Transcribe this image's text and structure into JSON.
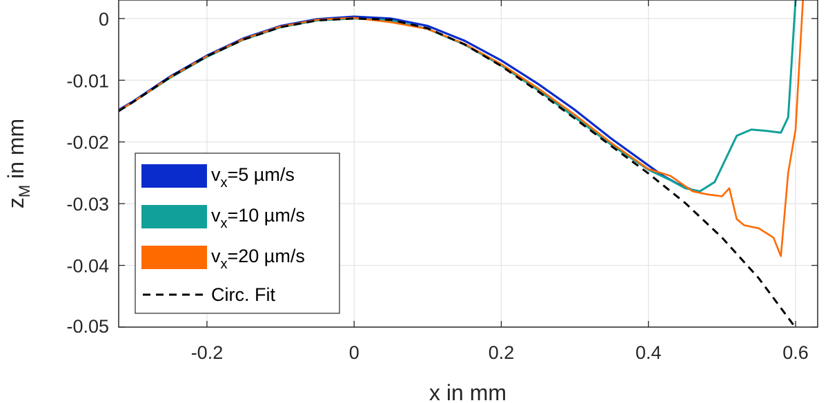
{
  "chart_data": {
    "type": "line",
    "xlabel": "x in mm",
    "ylabel": "z_M in mm",
    "ylabel_main": "z",
    "ylabel_sub": "M",
    "ylabel_rest": " in mm",
    "xlim": [
      -0.32,
      0.63
    ],
    "ylim": [
      -0.05,
      0.003
    ],
    "xticks": [
      -0.2,
      0,
      0.2,
      0.4,
      0.6
    ],
    "xtick_labels": [
      "-0.2",
      "0",
      "0.2",
      "0.4",
      "0.6"
    ],
    "yticks": [
      0,
      -0.01,
      -0.02,
      -0.03,
      -0.04,
      -0.05
    ],
    "ytick_labels": [
      "0",
      "-0.01",
      "-0.02",
      "-0.03",
      "-0.04",
      "-0.05"
    ],
    "grid": true,
    "legend_position": "bottom-left",
    "fit": {
      "name": "Circ. Fit",
      "style": "dashed",
      "color": "#000000",
      "x": [
        -0.32,
        -0.3,
        -0.25,
        -0.2,
        -0.15,
        -0.1,
        -0.05,
        0.0,
        0.05,
        0.1,
        0.15,
        0.2,
        0.25,
        0.3,
        0.35,
        0.4,
        0.45,
        0.5,
        0.55,
        0.6
      ],
      "y": [
        -0.015,
        -0.0135,
        -0.0095,
        -0.0061,
        -0.0034,
        -0.0014,
        -0.0003,
        0.0,
        -0.0002,
        -0.0016,
        -0.0042,
        -0.0077,
        -0.0118,
        -0.0162,
        -0.0207,
        -0.0251,
        -0.0299,
        -0.0355,
        -0.0421,
        -0.0501
      ]
    },
    "series": [
      {
        "name_main": "v",
        "name_sub": "x",
        "name_rest": "=5 µm/s",
        "color": "#0b2ccc",
        "x": [
          -0.32,
          -0.3,
          -0.25,
          -0.2,
          -0.15,
          -0.1,
          -0.05,
          0.0,
          0.05,
          0.1,
          0.15,
          0.2,
          0.25,
          0.3,
          0.35,
          0.4,
          0.42,
          0.44,
          0.46
        ],
        "y": [
          -0.0148,
          -0.0134,
          -0.0094,
          -0.006,
          -0.0032,
          -0.0012,
          -0.0001,
          0.0003,
          0.0,
          -0.0012,
          -0.0036,
          -0.0068,
          -0.0106,
          -0.0148,
          -0.0195,
          -0.0238,
          -0.0255,
          -0.0268,
          -0.0278
        ]
      },
      {
        "name_main": "v",
        "name_sub": "x",
        "name_rest": "=10 µm/s",
        "color": "#12a09a",
        "x": [
          -0.32,
          -0.3,
          -0.25,
          -0.2,
          -0.15,
          -0.1,
          -0.05,
          0.0,
          0.05,
          0.1,
          0.15,
          0.2,
          0.25,
          0.3,
          0.35,
          0.4,
          0.43,
          0.45,
          0.47,
          0.49,
          0.5,
          0.52,
          0.54,
          0.56,
          0.58,
          0.59,
          0.6
        ],
        "y": [
          -0.015,
          -0.0135,
          -0.0096,
          -0.0062,
          -0.0034,
          -0.0014,
          -0.0003,
          0.0,
          -0.0003,
          -0.0017,
          -0.0042,
          -0.0076,
          -0.0116,
          -0.016,
          -0.0205,
          -0.0245,
          -0.0262,
          -0.0275,
          -0.028,
          -0.0265,
          -0.024,
          -0.019,
          -0.018,
          -0.0182,
          -0.0185,
          -0.016,
          0.003
        ]
      },
      {
        "name_main": "v",
        "name_sub": "x",
        "name_rest": "=20 µm/s",
        "color": "#ff6a00",
        "x": [
          -0.32,
          -0.3,
          -0.25,
          -0.2,
          -0.15,
          -0.1,
          -0.05,
          0.0,
          0.05,
          0.1,
          0.15,
          0.2,
          0.25,
          0.3,
          0.35,
          0.4,
          0.43,
          0.46,
          0.48,
          0.5,
          0.51,
          0.52,
          0.53,
          0.55,
          0.57,
          0.58,
          0.59,
          0.6,
          0.61
        ],
        "y": [
          -0.0149,
          -0.0135,
          -0.0095,
          -0.0061,
          -0.0033,
          -0.0013,
          -0.0002,
          0.0001,
          -0.0006,
          -0.0017,
          -0.0041,
          -0.0074,
          -0.0113,
          -0.0156,
          -0.0202,
          -0.0244,
          -0.0255,
          -0.028,
          -0.0285,
          -0.0288,
          -0.0275,
          -0.0325,
          -0.0335,
          -0.034,
          -0.0355,
          -0.0385,
          -0.025,
          -0.018,
          0.003
        ]
      }
    ],
    "legend_entry_fit": "Circ. Fit"
  }
}
